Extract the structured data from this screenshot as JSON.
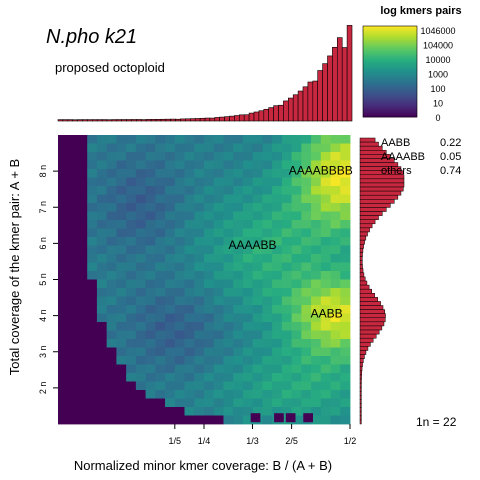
{
  "chart_data": {
    "type": "heatmap",
    "title": "N.pho k21",
    "subtitle": "proposed octoploid",
    "xlabel": "Normalized minor kmer coverage: B / (A + B)",
    "ylabel": "Total coverage of the kmer pair: A + B",
    "x_ticks": [
      "1/5",
      "1/4",
      "1/3",
      "2/5",
      "1/2"
    ],
    "x_tick_values": [
      0.2,
      0.25,
      0.333,
      0.4,
      0.5
    ],
    "xlim": [
      0,
      0.5
    ],
    "y_ticks": [
      "2 n",
      "3 n",
      "4 n",
      "5 n",
      "6 n",
      "7 n",
      "8 n"
    ],
    "y_tick_values": [
      2,
      3,
      4,
      5,
      6,
      7,
      8
    ],
    "ylim": [
      1,
      9
    ],
    "haploid_coverage_label": "1n =  22",
    "colorbar": {
      "title": "log kmers pairs",
      "labels": [
        "1046000",
        "104000",
        "10000",
        "1000",
        "100",
        "10",
        "0"
      ],
      "colors": [
        "#440154",
        "#472d7b",
        "#3b528b",
        "#2c728e",
        "#21918c",
        "#28ae80",
        "#5ec962",
        "#addc30",
        "#fde725"
      ]
    },
    "annotations": [
      {
        "text": "AAAABBBB",
        "x": 0.45,
        "y": 7.9
      },
      {
        "text": "AAAABB",
        "x": 0.333,
        "y": 5.85
      },
      {
        "text": "AABB",
        "x": 0.46,
        "y": 3.95
      }
    ],
    "genotype_proportions": [
      {
        "genotype": "AABB",
        "value": "0.22"
      },
      {
        "genotype": "AAAABB",
        "value": "0.05"
      },
      {
        "genotype": "others",
        "value": "0.74"
      }
    ],
    "top_histogram_color": "#c8283f",
    "right_histogram_peaks_n": [
      4,
      8
    ]
  }
}
